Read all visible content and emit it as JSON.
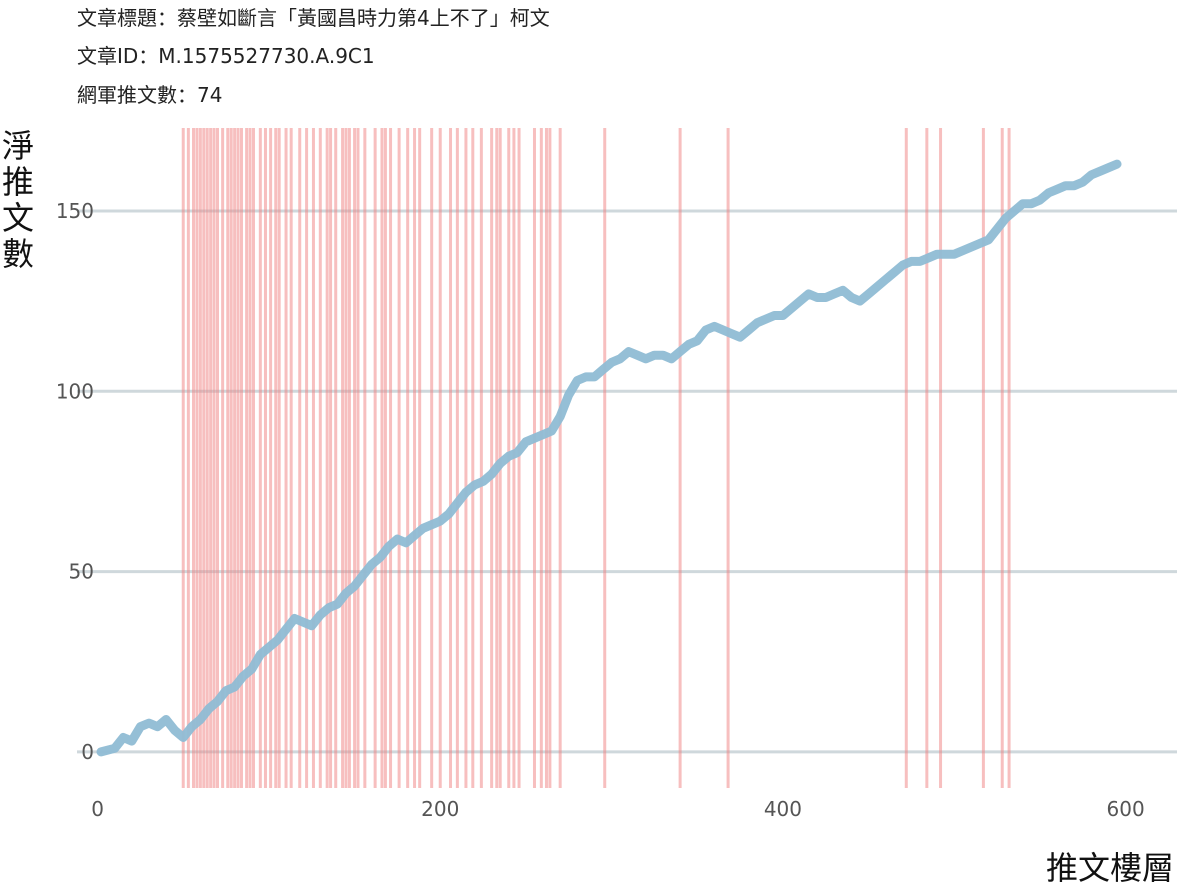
{
  "header": {
    "line1": "文章標題：蔡壁如斷言「黃國昌時力第4上不了」柯文",
    "line2": "文章ID：M.1575527730.A.9C1",
    "line3": "網軍推文數：74"
  },
  "chart_data": {
    "type": "line",
    "title": "",
    "xlabel": "推文樓層",
    "ylabel": "淨推文數",
    "xlim": [
      -12,
      630
    ],
    "ylim": [
      -10,
      173
    ],
    "x_ticks": [
      0,
      200,
      400,
      600
    ],
    "y_ticks": [
      0,
      50,
      100,
      150
    ],
    "grid": "horizontal-major",
    "series": [
      {
        "color": "#8fbcd4",
        "points": [
          [
            2,
            0
          ],
          [
            10,
            1
          ],
          [
            15,
            4
          ],
          [
            20,
            3
          ],
          [
            25,
            7
          ],
          [
            30,
            8
          ],
          [
            35,
            7
          ],
          [
            40,
            9
          ],
          [
            45,
            6
          ],
          [
            50,
            4
          ],
          [
            55,
            7
          ],
          [
            60,
            9
          ],
          [
            65,
            12
          ],
          [
            70,
            14
          ],
          [
            75,
            17
          ],
          [
            80,
            18
          ],
          [
            85,
            21
          ],
          [
            90,
            23
          ],
          [
            95,
            27
          ],
          [
            100,
            29
          ],
          [
            105,
            31
          ],
          [
            110,
            34
          ],
          [
            115,
            37
          ],
          [
            120,
            36
          ],
          [
            125,
            35
          ],
          [
            130,
            38
          ],
          [
            135,
            40
          ],
          [
            140,
            41
          ],
          [
            145,
            44
          ],
          [
            150,
            46
          ],
          [
            155,
            49
          ],
          [
            160,
            52
          ],
          [
            165,
            54
          ],
          [
            170,
            57
          ],
          [
            175,
            59
          ],
          [
            180,
            58
          ],
          [
            185,
            60
          ],
          [
            190,
            62
          ],
          [
            195,
            63
          ],
          [
            200,
            64
          ],
          [
            205,
            66
          ],
          [
            210,
            69
          ],
          [
            215,
            72
          ],
          [
            220,
            74
          ],
          [
            225,
            75
          ],
          [
            230,
            77
          ],
          [
            235,
            80
          ],
          [
            240,
            82
          ],
          [
            245,
            83
          ],
          [
            250,
            86
          ],
          [
            255,
            87
          ],
          [
            260,
            88
          ],
          [
            265,
            89
          ],
          [
            270,
            93
          ],
          [
            275,
            99
          ],
          [
            280,
            103
          ],
          [
            285,
            104
          ],
          [
            290,
            104
          ],
          [
            295,
            106
          ],
          [
            300,
            108
          ],
          [
            305,
            109
          ],
          [
            310,
            111
          ],
          [
            315,
            110
          ],
          [
            320,
            109
          ],
          [
            325,
            110
          ],
          [
            330,
            110
          ],
          [
            335,
            109
          ],
          [
            340,
            111
          ],
          [
            345,
            113
          ],
          [
            350,
            114
          ],
          [
            355,
            117
          ],
          [
            360,
            118
          ],
          [
            365,
            117
          ],
          [
            370,
            116
          ],
          [
            375,
            115
          ],
          [
            380,
            117
          ],
          [
            385,
            119
          ],
          [
            390,
            120
          ],
          [
            395,
            121
          ],
          [
            400,
            121
          ],
          [
            405,
            123
          ],
          [
            410,
            125
          ],
          [
            415,
            127
          ],
          [
            420,
            126
          ],
          [
            425,
            126
          ],
          [
            430,
            127
          ],
          [
            435,
            128
          ],
          [
            440,
            126
          ],
          [
            445,
            125
          ],
          [
            450,
            127
          ],
          [
            455,
            129
          ],
          [
            460,
            131
          ],
          [
            465,
            133
          ],
          [
            470,
            135
          ],
          [
            475,
            136
          ],
          [
            480,
            136
          ],
          [
            485,
            137
          ],
          [
            490,
            138
          ],
          [
            495,
            138
          ],
          [
            500,
            138
          ],
          [
            505,
            139
          ],
          [
            510,
            140
          ],
          [
            515,
            141
          ],
          [
            520,
            142
          ],
          [
            525,
            145
          ],
          [
            530,
            148
          ],
          [
            535,
            150
          ],
          [
            540,
            152
          ],
          [
            545,
            152
          ],
          [
            550,
            153
          ],
          [
            555,
            155
          ],
          [
            560,
            156
          ],
          [
            565,
            157
          ],
          [
            570,
            157
          ],
          [
            575,
            158
          ],
          [
            580,
            160
          ],
          [
            585,
            161
          ],
          [
            590,
            162
          ],
          [
            595,
            163
          ]
        ]
      }
    ],
    "vlines": {
      "color": "#f08080",
      "x": [
        50,
        53,
        56,
        58,
        60,
        62,
        64,
        66,
        68,
        70,
        73,
        76,
        78,
        80,
        82,
        84,
        87,
        89,
        91,
        95,
        98,
        101,
        104,
        106,
        110,
        113,
        118,
        122,
        126,
        130,
        134,
        136,
        139,
        143,
        145,
        147,
        150,
        152,
        156,
        162,
        166,
        168,
        171,
        176,
        181,
        185,
        188,
        195,
        200,
        206,
        210,
        215,
        219,
        224,
        230,
        233,
        235,
        240,
        243,
        246,
        255,
        259,
        262,
        264,
        270,
        296,
        340,
        368,
        472,
        484,
        492,
        517,
        528,
        532
      ]
    }
  }
}
